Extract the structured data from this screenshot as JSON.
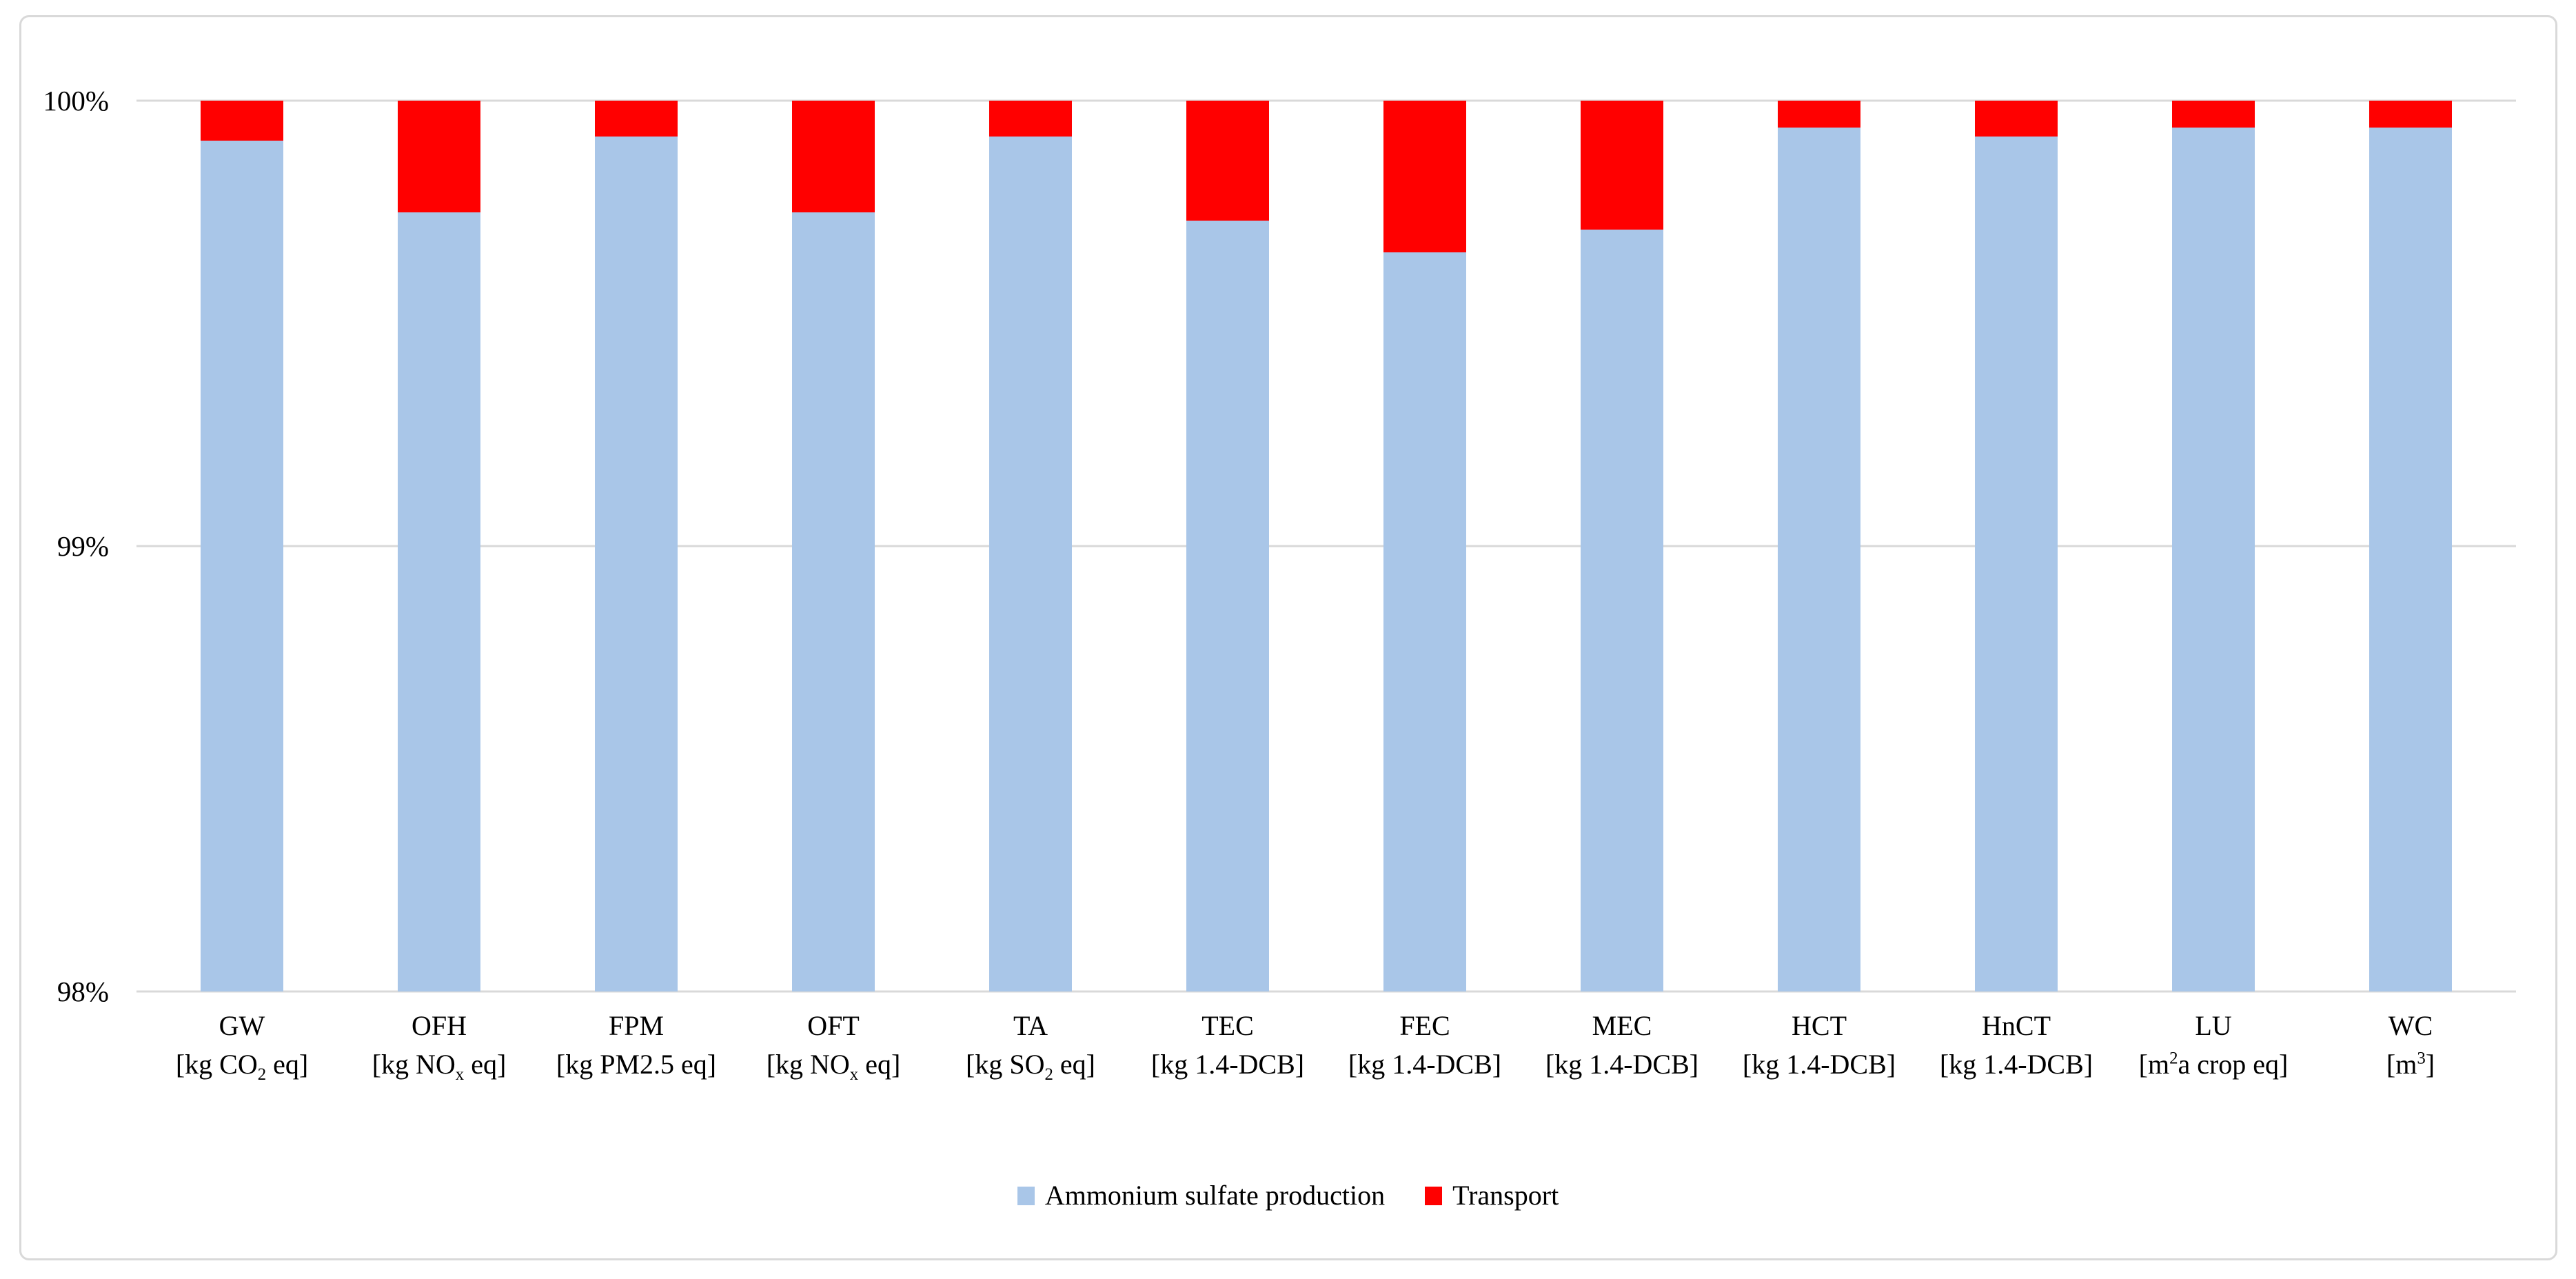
{
  "figure": {
    "background": "#FFFFFF",
    "border_color": "#D9D9D9",
    "text_color": "#000000"
  },
  "chart_data": {
    "type": "bar",
    "stacked": true,
    "orientation": "vertical",
    "title": "",
    "xlabel": "",
    "ylabel": "",
    "ylim": [
      98,
      100
    ],
    "grid": "horizontal",
    "gridline_color": "#D9D9D9",
    "legend_position": "bottom-center",
    "yticks": [
      {
        "value": 100,
        "label": "100%"
      },
      {
        "value": 99,
        "label": "99%"
      },
      {
        "value": 98,
        "label": "98%"
      }
    ],
    "categories": [
      {
        "code": "GW",
        "unit": "[kg CO_{2} eq]"
      },
      {
        "code": "OFH",
        "unit": "[kg NO_{x} eq]"
      },
      {
        "code": "FPM",
        "unit": "[kg PM2.5 eq]"
      },
      {
        "code": "OFT",
        "unit": "[kg NO_{x} eq]"
      },
      {
        "code": "TA",
        "unit": "[kg SO_{2} eq]"
      },
      {
        "code": "TEC",
        "unit": "[kg 1.4-DCB]"
      },
      {
        "code": "FEC",
        "unit": "[kg 1.4-DCB]"
      },
      {
        "code": "MEC",
        "unit": "[kg 1.4-DCB]"
      },
      {
        "code": "HCT",
        "unit": "[kg 1.4-DCB]"
      },
      {
        "code": "HnCT",
        "unit": "[kg 1.4-DCB]"
      },
      {
        "code": "LU",
        "unit": "[m^{2}a crop eq]"
      },
      {
        "code": "WC",
        "unit": "[m^{3}]"
      }
    ],
    "series": [
      {
        "name": "Ammonium sulfate production",
        "color": "#A9C6E8",
        "values": [
          99.91,
          99.75,
          99.92,
          99.75,
          99.92,
          99.73,
          99.66,
          99.71,
          99.94,
          99.92,
          99.94,
          99.94
        ]
      },
      {
        "name": "Transport",
        "color": "#FF0000",
        "values": [
          0.09,
          0.25,
          0.08,
          0.25,
          0.08,
          0.27,
          0.34,
          0.29,
          0.06,
          0.08,
          0.06,
          0.06
        ]
      }
    ]
  }
}
